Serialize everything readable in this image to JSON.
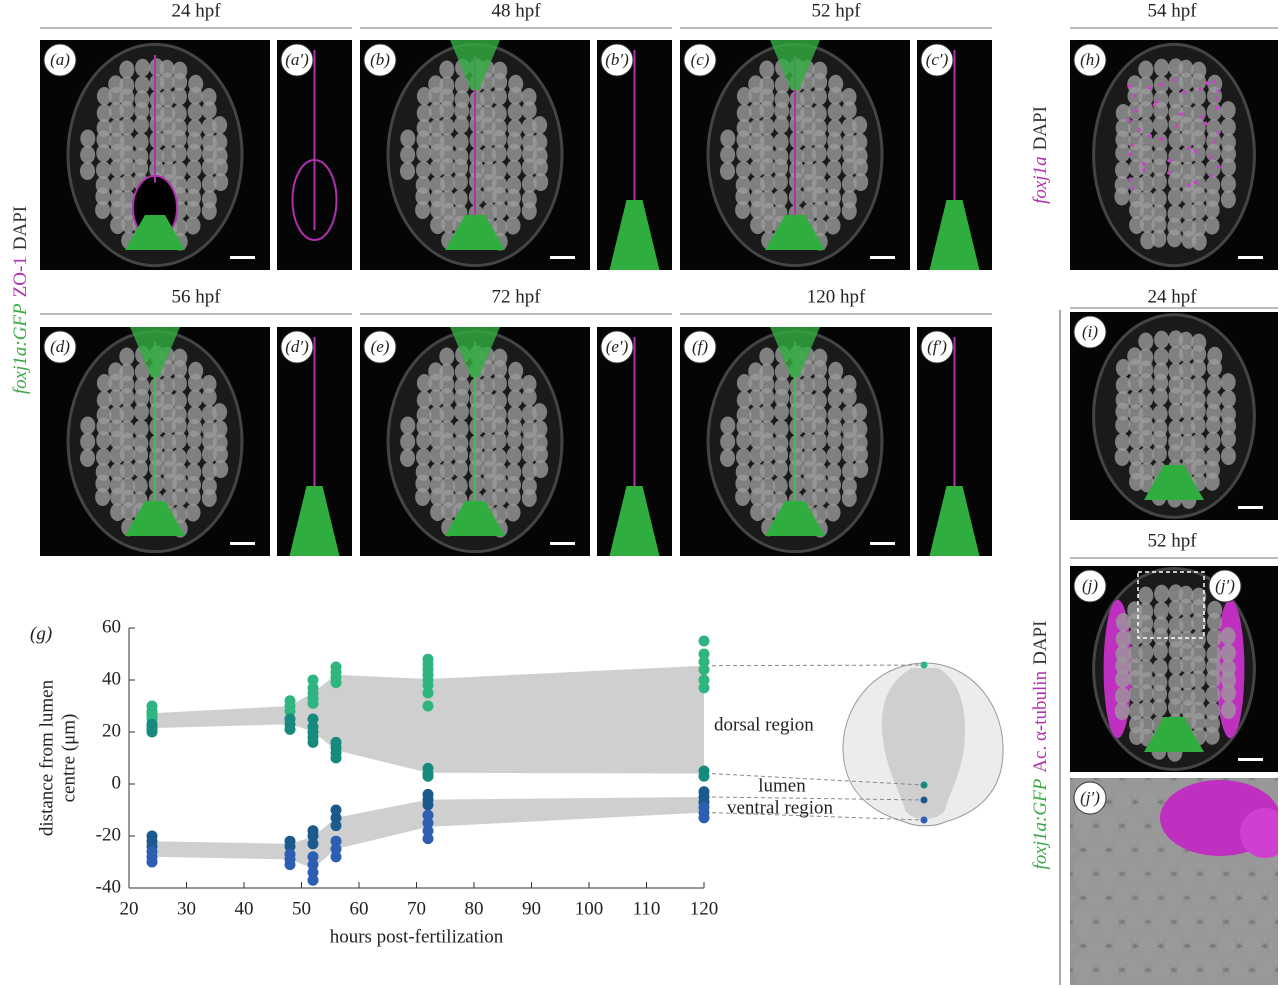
{
  "figure": {
    "left_label": [
      "foxj1a:GFP",
      "ZO-1",
      "DAPI"
    ],
    "right_top_label": [
      "foxj1a",
      "DAPI"
    ],
    "right_bottom_label": [
      "foxj1a:GFP",
      "Ac. α-tubulin",
      "DAPI"
    ],
    "groups": [
      {
        "title": "24 hpf",
        "panels": [
          "(a)",
          "(a′)"
        ]
      },
      {
        "title": "48 hpf",
        "panels": [
          "(b)",
          "(b′)"
        ]
      },
      {
        "title": "52 hpf",
        "panels": [
          "(c)",
          "(c′)"
        ]
      },
      {
        "title": "56 hpf",
        "panels": [
          "(d)",
          "(d′)"
        ]
      },
      {
        "title": "72 hpf",
        "panels": [
          "(e)",
          "(e′)"
        ]
      },
      {
        "title": "120 hpf",
        "panels": [
          "(f)",
          "(f′)"
        ]
      },
      {
        "title": "54 hpf",
        "panels": [
          "(h)"
        ]
      },
      {
        "title": "24 hpf",
        "panels": [
          "(i)"
        ]
      },
      {
        "title": "52 hpf",
        "panels": [
          "(j)",
          "(j′)"
        ]
      }
    ],
    "inset_label": "(j′)"
  },
  "chart_data": {
    "type": "scatter",
    "panel_label": "(g)",
    "xlabel": "hours post-fertilization",
    "ylabel": [
      "distance from lumen",
      "centre (μm)"
    ],
    "xlim": [
      20,
      120
    ],
    "ylim": [
      -40,
      60
    ],
    "xticks": [
      20,
      30,
      40,
      50,
      60,
      70,
      80,
      90,
      100,
      110,
      120
    ],
    "yticks": [
      -40,
      -20,
      0,
      20,
      40,
      60
    ],
    "annotations": [
      "dorsal region",
      "lumen",
      "ventral region"
    ],
    "series": [
      {
        "color": "#2fb57f",
        "x": [
          24,
          24,
          24,
          24,
          24,
          48,
          48,
          48,
          52,
          52,
          52,
          52,
          52,
          56,
          56,
          56,
          56,
          72,
          72,
          72,
          72,
          72,
          72,
          72,
          72,
          120,
          120,
          120,
          120,
          120,
          120
        ],
        "values": [
          30,
          28,
          27,
          26,
          25,
          32,
          30,
          28,
          40,
          37,
          35,
          33,
          31,
          45,
          43,
          41,
          39,
          48,
          46,
          44,
          42,
          40,
          38,
          35,
          30,
          55,
          50,
          47,
          44,
          40,
          37
        ]
      },
      {
        "color": "#178a7e",
        "x": [
          24,
          24,
          24,
          24,
          48,
          48,
          48,
          52,
          52,
          52,
          52,
          52,
          56,
          56,
          56,
          56,
          72,
          72,
          72,
          120,
          120
        ],
        "values": [
          23,
          22,
          21,
          20,
          25,
          23,
          21,
          25,
          22,
          20,
          18,
          16,
          16,
          14,
          12,
          10,
          6,
          4,
          3,
          5,
          3
        ]
      },
      {
        "color": "#1b5a8c",
        "x": [
          24,
          24,
          24,
          48,
          48,
          52,
          52,
          52,
          56,
          56,
          56,
          72,
          72,
          72,
          120,
          120,
          120
        ],
        "values": [
          -20,
          -22,
          -24,
          -22,
          -24,
          -18,
          -20,
          -23,
          -10,
          -13,
          -16,
          -4,
          -6,
          -8,
          -3,
          -5,
          -7
        ]
      },
      {
        "color": "#2c5fb2",
        "x": [
          24,
          24,
          24,
          48,
          48,
          48,
          52,
          52,
          52,
          52,
          56,
          56,
          56,
          72,
          72,
          72,
          72,
          120,
          120,
          120
        ],
        "values": [
          -26,
          -28,
          -30,
          -27,
          -29,
          -31,
          -28,
          -31,
          -34,
          -37,
          -22,
          -25,
          -28,
          -12,
          -15,
          -18,
          -21,
          -9,
          -11,
          -13
        ]
      }
    ]
  }
}
